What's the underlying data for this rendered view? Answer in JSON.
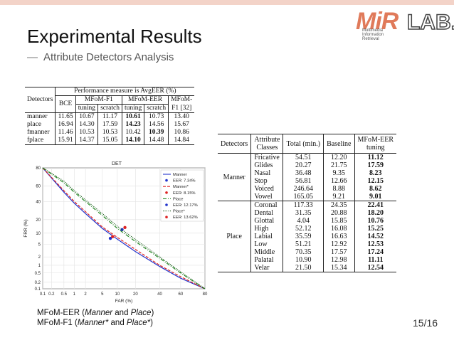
{
  "slide": {
    "title": "Experimental Results",
    "subtitle_dash": "—",
    "subtitle": "Attribute Detectors Analysis",
    "page": "15/16",
    "caption1_a": "MFoM-EER (",
    "caption1_b": "Manner",
    "caption1_c": " and ",
    "caption1_d": "Place",
    "caption1_e": ")",
    "caption2_a": "MFoM-F1   (",
    "caption2_b": "Manner*",
    "caption2_c": " and ",
    "caption2_d": "Place*",
    "caption2_e": ")"
  },
  "logo": {
    "mir": "MiR",
    "lab": "LAB.",
    "sub1": "Multimedia",
    "sub2": "Information",
    "sub3": "Retrieval",
    "colors": {
      "mir": "#e07a5a",
      "lab_outline": "#444444"
    }
  },
  "table1": {
    "col_detectors": "Detectors",
    "perf_header": "Performance measure is AvgEER (%)",
    "col_bce": "BCE",
    "col_f1": "MFoM-F1",
    "col_eer": "MFoM-EER",
    "col_mfom_ref1": "MFoM-",
    "col_mfom_ref2": "F1 [32]",
    "sub_tuning": "tuning",
    "sub_scratch": "scratch",
    "rows": [
      {
        "name": "manner",
        "bce": "11.65",
        "f1_t": "10.67",
        "f1_s": "11.17",
        "eer_t": "10.61",
        "eer_s": "10.73",
        "ref": "13.40",
        "bold": "eer_t"
      },
      {
        "name": "place",
        "bce": "16.94",
        "f1_t": "14.30",
        "f1_s": "17.59",
        "eer_t": "14.23",
        "eer_s": "14.56",
        "ref": "15.67",
        "bold": "eer_t"
      },
      {
        "name": "fmanner",
        "bce": "11.46",
        "f1_t": "10.53",
        "f1_s": "10.53",
        "eer_t": "10.42",
        "eer_s": "10.39",
        "ref": "10.86",
        "bold": "eer_s"
      },
      {
        "name": "fplace",
        "bce": "15.91",
        "f1_t": "14.37",
        "f1_s": "15.05",
        "eer_t": "14.10",
        "eer_s": "14.48",
        "ref": "14.84",
        "bold": "eer_t"
      }
    ]
  },
  "table2": {
    "col_detectors": "Detectors",
    "col_attr1": "Attribute",
    "col_attr2": "Classes",
    "col_total": "Total (min.)",
    "col_baseline": "Baseline",
    "col_mfom1": "MFoM-EER",
    "col_mfom2": "tuning",
    "groups": [
      {
        "name": "Manner",
        "rows": [
          {
            "cls": "Fricative",
            "total": "54.51",
            "base": "12.20",
            "mfom": "11.12"
          },
          {
            "cls": "Glides",
            "total": "20.27",
            "base": "21.75",
            "mfom": "17.59"
          },
          {
            "cls": "Nasal",
            "total": "36.48",
            "base": "9.35",
            "mfom": "8.23"
          },
          {
            "cls": "Stop",
            "total": "56.81",
            "base": "12.66",
            "mfom": "12.15"
          },
          {
            "cls": "Voiced",
            "total": "246.64",
            "base": "8.88",
            "mfom": "8.62"
          },
          {
            "cls": "Vowel",
            "total": "165.05",
            "base": "9.21",
            "mfom": "9.01"
          }
        ]
      },
      {
        "name": "Place",
        "rows": [
          {
            "cls": "Coronal",
            "total": "117.33",
            "base": "24.35",
            "mfom": "22.41"
          },
          {
            "cls": "Dental",
            "total": "31.35",
            "base": "20.88",
            "mfom": "18.20"
          },
          {
            "cls": "Glottal",
            "total": "4.04",
            "base": "15.85",
            "mfom": "10.76"
          },
          {
            "cls": "High",
            "total": "52.12",
            "base": "16.08",
            "mfom": "15.25"
          },
          {
            "cls": "Labial",
            "total": "35.59",
            "base": "16.63",
            "mfom": "14.52"
          },
          {
            "cls": "Low",
            "total": "51.21",
            "base": "12.92",
            "mfom": "12.53"
          },
          {
            "cls": "Middle",
            "total": "70.35",
            "base": "17.57",
            "mfom": "17.24"
          },
          {
            "cls": "Palatal",
            "total": "10.90",
            "base": "12.98",
            "mfom": "11.11"
          },
          {
            "cls": "Velar",
            "total": "21.50",
            "base": "15.34",
            "mfom": "12.54"
          }
        ]
      }
    ]
  },
  "chart_data": {
    "type": "line",
    "title": "DET",
    "xlabel": "FAR (%)",
    "ylabel": "FRR (%)",
    "scale": "normal-deviate",
    "xticks": [
      "0.1",
      "0.2",
      "0.5",
      "1",
      "2",
      "5",
      "10",
      "20",
      "40",
      "60",
      "80"
    ],
    "xtick_values": [
      0.1,
      0.2,
      0.5,
      1,
      2,
      5,
      10,
      20,
      40,
      60,
      80
    ],
    "yticks": [
      "0.1",
      "0.2",
      "0.5",
      "1",
      "2",
      "5",
      "10",
      "20",
      "40",
      "60",
      "80"
    ],
    "ytick_values": [
      0.1,
      0.2,
      0.5,
      1,
      2,
      5,
      10,
      20,
      40,
      60,
      80
    ],
    "xlim": [
      0.1,
      80
    ],
    "ylim": [
      0.1,
      80
    ],
    "legend_position": "top-right",
    "series": [
      {
        "name": "Manner",
        "style": "solid",
        "color": "#2233cc",
        "x": [
          0.1,
          0.5,
          1,
          2,
          5,
          10,
          20,
          40,
          60,
          80
        ],
        "y": [
          80,
          52,
          38,
          26,
          13,
          7,
          3,
          0.9,
          0.3,
          0.1
        ]
      },
      {
        "name": "EER: 7.34%",
        "style": "marker",
        "color": "#2233cc",
        "x": [
          7.34
        ],
        "y": [
          7.34
        ]
      },
      {
        "name": "Manner*",
        "style": "dashed",
        "color": "#dd2222",
        "x": [
          0.1,
          0.5,
          1,
          2,
          5,
          10,
          20,
          40,
          60,
          80
        ],
        "y": [
          80,
          54,
          40,
          28,
          14,
          7.8,
          3.5,
          1.0,
          0.35,
          0.1
        ]
      },
      {
        "name": "EER: 8.15%",
        "style": "marker",
        "color": "#dd2222",
        "x": [
          8.15
        ],
        "y": [
          8.15
        ]
      },
      {
        "name": "Place",
        "style": "dashdot",
        "color": "#228822",
        "x": [
          0.1,
          0.5,
          1,
          2,
          5,
          10,
          20,
          40,
          60,
          80
        ],
        "y": [
          80,
          64,
          52,
          40,
          24,
          13,
          6,
          1.8,
          0.5,
          0.1
        ]
      },
      {
        "name": "EER: 12.17%",
        "style": "marker",
        "color": "#2233cc",
        "x": [
          12.17
        ],
        "y": [
          12.17
        ]
      },
      {
        "name": "Place*",
        "style": "dotted",
        "color": "#115511",
        "x": [
          0.1,
          0.5,
          1,
          2,
          5,
          10,
          20,
          40,
          60,
          80
        ],
        "y": [
          80,
          66,
          54,
          42,
          26,
          14.5,
          6.8,
          2.0,
          0.55,
          0.1
        ]
      },
      {
        "name": "EER: 13.62%",
        "style": "marker",
        "color": "#dd2222",
        "x": [
          13.62
        ],
        "y": [
          13.62
        ]
      }
    ]
  }
}
